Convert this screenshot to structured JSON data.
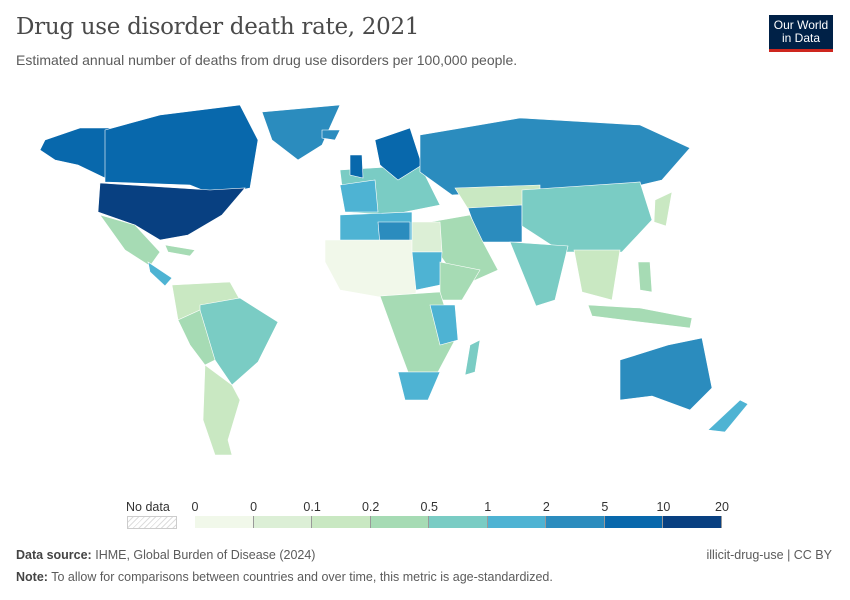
{
  "header": {
    "title": "Drug use disorder death rate, 2021",
    "subtitle": "Estimated annual number of deaths from drug use disorders per 100,000 people.",
    "logo": "Our World in Data"
  },
  "legend": {
    "no_data_label": "No data",
    "tick_labels": [
      "0",
      "0",
      "0.1",
      "0.2",
      "0.5",
      "1",
      "2",
      "5",
      "10",
      "20"
    ],
    "bin_colors": [
      "#f1f8ea",
      "#dcefd6",
      "#c9e8c2",
      "#a6dbb4",
      "#7accc4",
      "#4eb3d3",
      "#2b8cbe",
      "#0868ac",
      "#084081"
    ]
  },
  "footer": {
    "source_label": "Data source:",
    "source": "IHME, Global Burden of Disease (2024)",
    "note_label": "Note:",
    "note": "To allow for comparisons between countries and over time, this metric is age-standardized.",
    "slug": "illicit-drug-use | CC BY"
  }
}
